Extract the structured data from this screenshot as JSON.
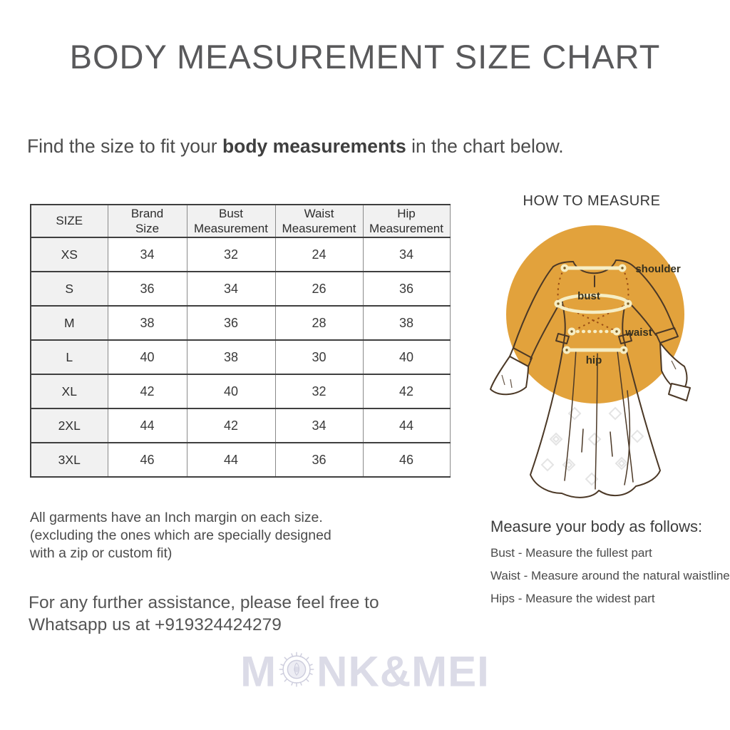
{
  "header": {
    "title": "BODY MEASUREMENT SIZE CHART"
  },
  "intro": {
    "prefix": "Find the size to fit your ",
    "bold": "body measurements",
    "suffix": " in the chart below."
  },
  "size_table": {
    "columns": [
      "SIZE",
      "Brand\nSize",
      "Bust\nMeasurement",
      "Waist\nMeasurement",
      "Hip\nMeasurement"
    ],
    "rows": [
      [
        "XS",
        "34",
        "32",
        "24",
        "34"
      ],
      [
        "S",
        "36",
        "34",
        "26",
        "36"
      ],
      [
        "M",
        "38",
        "36",
        "28",
        "38"
      ],
      [
        "L",
        "40",
        "38",
        "30",
        "40"
      ],
      [
        "XL",
        "42",
        "40",
        "32",
        "42"
      ],
      [
        "2XL",
        "44",
        "42",
        "34",
        "44"
      ],
      [
        "3XL",
        "46",
        "44",
        "36",
        "46"
      ]
    ]
  },
  "notes": {
    "margin_note": "All garments have an Inch margin on each size.\n(excluding the ones which are specially designed\nwith a zip or custom fit)",
    "assistance_note": "For any further assistance, please feel free to\nWhatsapp us at +919324424279"
  },
  "how_to_measure": {
    "title": "HOW TO MEASURE",
    "figure_labels": {
      "shoulder": "shoulder",
      "bust": "bust",
      "waist": "waist",
      "hip": "hip"
    },
    "instructions_title": "Measure your body as follows:",
    "instructions": [
      "Bust - Measure the fullest part",
      "Waist - Measure around the natural waistline",
      "Hips - Measure the widest part"
    ]
  },
  "watermark": {
    "left": "M",
    "right": "NK&MEI"
  },
  "colors": {
    "accent_circle": "#E2A23C",
    "measure_line": "#F6EEC5",
    "dart_dotted_line": "#9A4D15",
    "garment_outline": "#4B3826",
    "watermark": "#DBDBE7",
    "title_text": "#59595B",
    "table_header_bg": "#F1F1F1"
  }
}
